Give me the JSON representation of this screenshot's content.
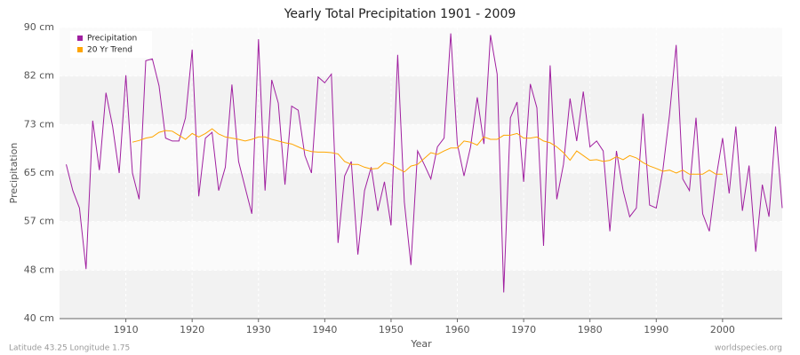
{
  "chart_data": {
    "type": "line",
    "title": "Yearly Total Precipitation 1901 - 2009",
    "x_label": "Year",
    "y_label": "Precipitation",
    "footnote_left": "Latitude 43.25 Longitude 1.75",
    "footnote_right": "worldspecies.org",
    "legend": "top-left",
    "grid": true,
    "xlim": [
      1900,
      2009
    ],
    "xticks": [
      1910,
      1920,
      1930,
      1940,
      1950,
      1960,
      1970,
      1980,
      1990,
      2000
    ],
    "ylim": [
      40,
      90
    ],
    "yticks": [
      {
        "value": 40,
        "label": "40 cm"
      },
      {
        "value": 48.33,
        "label": "48 cm"
      },
      {
        "value": 56.67,
        "label": "57 cm"
      },
      {
        "value": 65,
        "label": "65 cm"
      },
      {
        "value": 73.33,
        "label": "73 cm"
      },
      {
        "value": 81.67,
        "label": "82 cm"
      },
      {
        "value": 90,
        "label": "90 cm"
      }
    ],
    "x": [
      1901,
      1902,
      1903,
      1904,
      1905,
      1906,
      1907,
      1908,
      1909,
      1910,
      1911,
      1912,
      1913,
      1914,
      1915,
      1916,
      1917,
      1918,
      1919,
      1920,
      1921,
      1922,
      1923,
      1924,
      1925,
      1926,
      1927,
      1928,
      1929,
      1930,
      1931,
      1932,
      1933,
      1934,
      1935,
      1936,
      1937,
      1938,
      1939,
      1940,
      1941,
      1942,
      1943,
      1944,
      1945,
      1946,
      1947,
      1948,
      1949,
      1950,
      1951,
      1952,
      1953,
      1954,
      1955,
      1956,
      1957,
      1958,
      1959,
      1960,
      1961,
      1962,
      1963,
      1964,
      1965,
      1966,
      1967,
      1968,
      1969,
      1970,
      1971,
      1972,
      1973,
      1974,
      1975,
      1976,
      1977,
      1978,
      1979,
      1980,
      1981,
      1982,
      1983,
      1984,
      1985,
      1986,
      1987,
      1988,
      1989,
      1990,
      1991,
      1992,
      1993,
      1994,
      1995,
      1996,
      1997,
      1998,
      1999,
      2000,
      2001,
      2002,
      2003,
      2004,
      2005,
      2006,
      2007,
      2008,
      2009
    ],
    "series": [
      {
        "name": "Precipitation",
        "color": "#a020a0",
        "values": [
          66.5,
          62,
          59,
          48.5,
          74,
          65.5,
          78.8,
          73,
          65,
          81.8,
          65,
          60.5,
          84.3,
          84.6,
          80,
          71,
          70.5,
          70.5,
          74.5,
          86.2,
          61,
          71,
          72,
          62,
          66,
          80.2,
          67,
          62.5,
          58,
          88,
          62,
          81,
          77,
          63,
          76.5,
          75.8,
          68,
          65,
          81.5,
          80.5,
          82,
          53,
          64.5,
          67,
          51,
          62,
          66,
          58.5,
          63.5,
          56,
          85.3,
          60,
          49.2,
          68.8,
          66.5,
          64,
          69.5,
          71,
          89,
          70,
          64.5,
          69.5,
          78,
          70,
          88.7,
          82,
          44.5,
          74.5,
          77.2,
          63.5,
          80.3,
          76.2,
          52.5,
          83.5,
          60.5,
          66.5,
          77.8,
          70.5,
          79,
          69.5,
          70.5,
          68.8,
          55,
          68.8,
          62,
          57.5,
          59,
          75.2,
          59.5,
          59,
          65.5,
          75,
          87,
          64,
          62,
          74.5,
          58,
          55,
          64,
          71,
          61.5,
          73,
          58.5,
          66.3,
          51.5,
          63,
          57.5,
          73,
          59
        ]
      },
      {
        "name": "20 Yr Trend",
        "color": "#ffa500",
        "values": [
          null,
          null,
          null,
          null,
          null,
          null,
          null,
          null,
          null,
          null,
          70.3,
          70.6,
          71,
          71.2,
          72,
          72.3,
          72.2,
          71.5,
          70.8,
          71.8,
          71.2,
          71.8,
          72.6,
          71.7,
          71.2,
          71,
          70.8,
          70.5,
          70.8,
          71.2,
          71.2,
          70.8,
          70.5,
          70.2,
          70,
          69.5,
          69,
          68.7,
          68.6,
          68.6,
          68.5,
          68.3,
          67,
          66.5,
          66.5,
          66,
          65.7,
          65.8,
          66.8,
          66.5,
          65.8,
          65.2,
          66.2,
          66.5,
          67.5,
          68.5,
          68.2,
          68.8,
          69.3,
          69.3,
          70.5,
          70.3,
          69.8,
          71.2,
          70.8,
          70.8,
          71.5,
          71.5,
          71.8,
          71,
          71,
          71.2,
          70.5,
          70.2,
          69.5,
          68.5,
          67.2,
          68.8,
          68,
          67.2,
          67.3,
          67,
          67.2,
          67.8,
          67.3,
          68,
          67.6,
          66.8,
          66.2,
          65.8,
          65.3,
          65.5,
          65,
          65.5,
          64.8,
          64.8,
          64.8,
          65.5,
          64.8,
          64.8,
          null,
          null,
          null,
          null,
          null,
          null,
          null,
          null,
          null
        ]
      }
    ]
  }
}
